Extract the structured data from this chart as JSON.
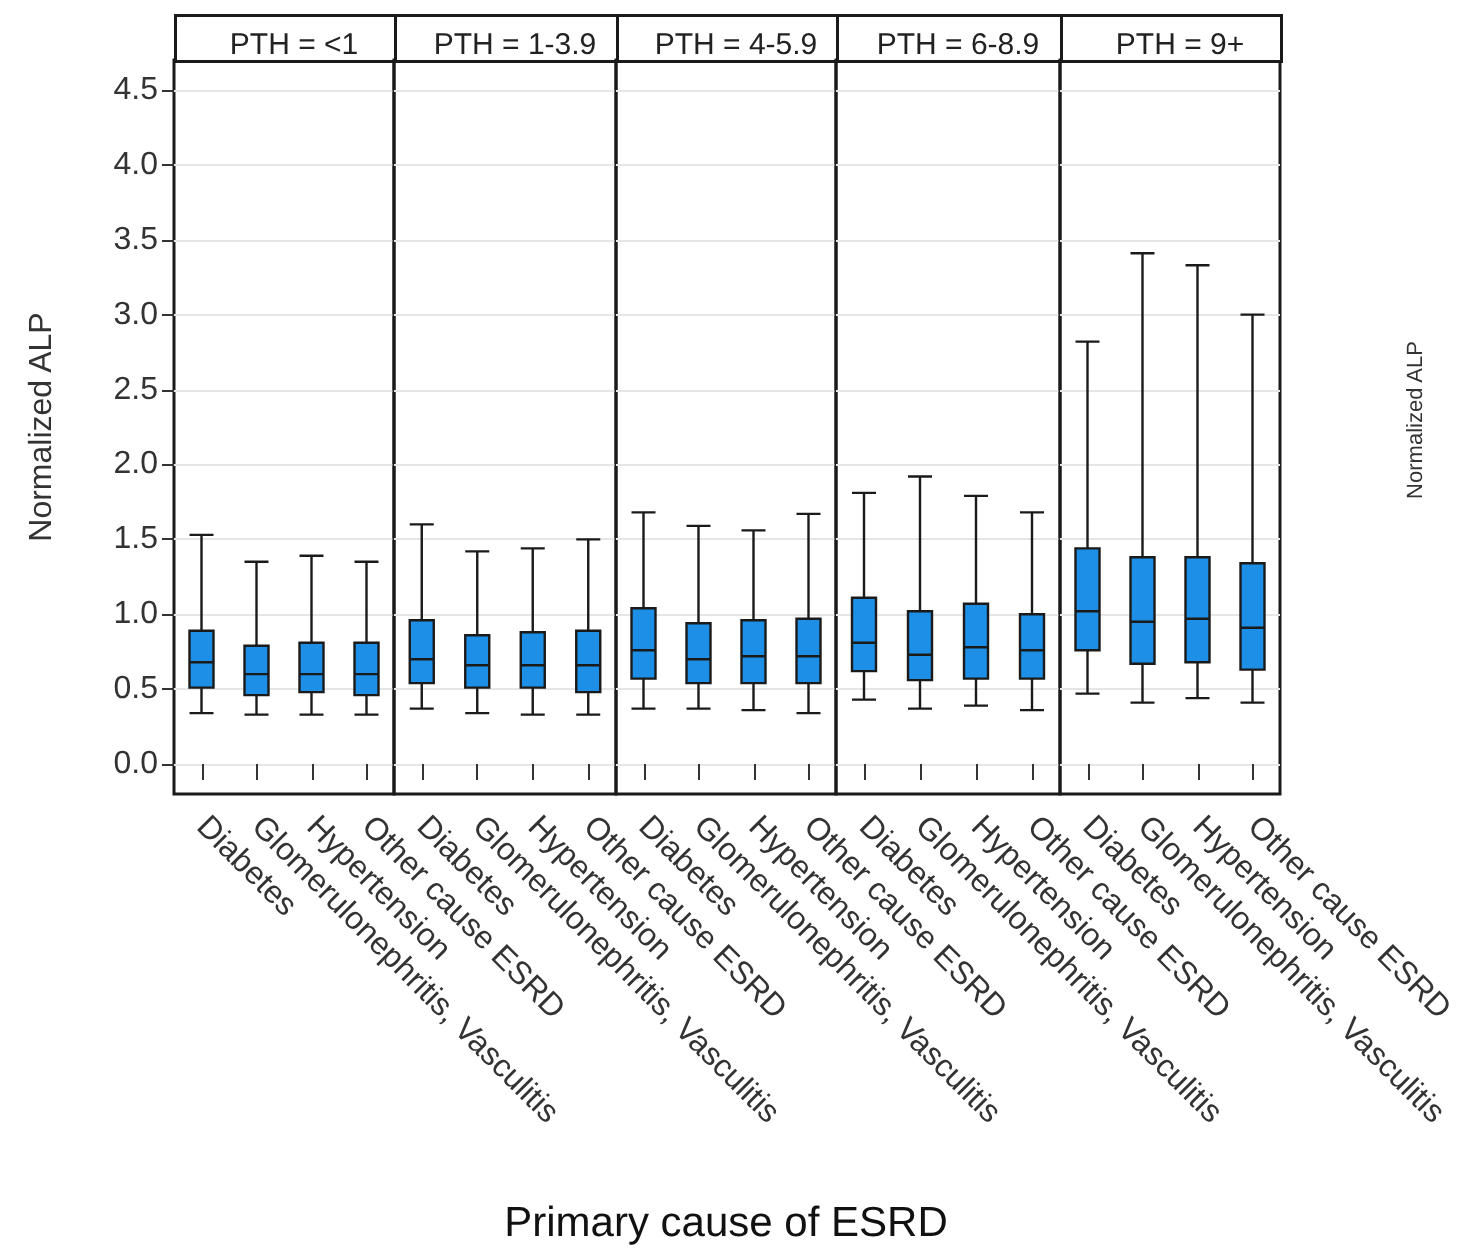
{
  "chart_data": [
    {
      "type": "box",
      "title": "PTH = <1",
      "ylabel": "Normalized ALP",
      "color": "#1e8fe6",
      "grid": "y",
      "categories": [
        "Diabetes",
        "Glomerulonephritis, Vasculitis",
        "Hypertension",
        "Other cause ESRD"
      ],
      "boxes": [
        {
          "low": 0.34,
          "q1": 0.51,
          "median": 0.68,
          "q3": 0.89,
          "high": 1.53
        },
        {
          "low": 0.33,
          "q1": 0.46,
          "median": 0.6,
          "q3": 0.79,
          "high": 1.35
        },
        {
          "low": 0.33,
          "q1": 0.48,
          "median": 0.6,
          "q3": 0.81,
          "high": 1.39
        },
        {
          "low": 0.33,
          "q1": 0.46,
          "median": 0.6,
          "q3": 0.81,
          "high": 1.35
        }
      ],
      "ylim": [
        -0.2,
        4.7
      ],
      "yticks": [
        {
          "value": 0,
          "label": "0.0"
        },
        0.5,
        {
          "value": 1,
          "label": "1.0"
        },
        1.5,
        {
          "value": 2,
          "label": "2.0"
        },
        2.5,
        {
          "value": 3,
          "label": "3.0"
        },
        3.5,
        {
          "value": 4,
          "label": "4.0"
        },
        4.5
      ]
    },
    {
      "type": "box",
      "title": "PTH = 1-3.9",
      "color": "#1e8fe6",
      "grid": "y",
      "tick_labels": "x",
      "categories": [
        "Diabetes",
        "Glomerulonephritis, Vasculitis",
        "Hypertension",
        "Other cause ESRD"
      ],
      "boxes": [
        {
          "low": 0.37,
          "q1": 0.54,
          "median": 0.7,
          "q3": 0.96,
          "high": 1.6
        },
        {
          "low": 0.34,
          "q1": 0.51,
          "median": 0.66,
          "q3": 0.86,
          "high": 1.42
        },
        {
          "low": 0.33,
          "q1": 0.51,
          "median": 0.66,
          "q3": 0.88,
          "high": 1.44
        },
        {
          "low": 0.33,
          "q1": 0.48,
          "median": 0.66,
          "q3": 0.89,
          "high": 1.5
        }
      ],
      "ylim": [
        -0.2,
        4.7
      ],
      "yticks": [
        0,
        0.5,
        1,
        1.5,
        2,
        2.5,
        3,
        3.5,
        4,
        4.5
      ]
    },
    {
      "type": "box",
      "title": "PTH = 4-5.9",
      "xlabel": "Primary cause of ESRD",
      "color": "#1e8fe6",
      "grid": "y",
      "tick_labels": "x",
      "categories": [
        "Diabetes",
        "Glomerulonephritis, Vasculitis",
        "Hypertension",
        "Other cause ESRD"
      ],
      "boxes": [
        {
          "low": 0.37,
          "q1": 0.57,
          "median": 0.76,
          "q3": 1.04,
          "high": 1.68
        },
        {
          "low": 0.37,
          "q1": 0.54,
          "median": 0.7,
          "q3": 0.94,
          "high": 1.59
        },
        {
          "low": 0.36,
          "q1": 0.54,
          "median": 0.72,
          "q3": 0.96,
          "high": 1.56
        },
        {
          "low": 0.34,
          "q1": 0.54,
          "median": 0.72,
          "q3": 0.97,
          "high": 1.67
        }
      ],
      "ylim": [
        -0.2,
        4.7
      ],
      "yticks": [
        0,
        0.5,
        1,
        1.5,
        2,
        2.5,
        3,
        3.5,
        4,
        4.5
      ]
    },
    {
      "type": "box",
      "title": "PTH = 6-8.9",
      "color": "#1e8fe6",
      "grid": "y",
      "tick_labels": "x",
      "categories": [
        "Diabetes",
        "Glomerulonephritis, Vasculitis",
        "Hypertension",
        "Other cause ESRD"
      ],
      "boxes": [
        {
          "low": 0.43,
          "q1": 0.62,
          "median": 0.81,
          "q3": 1.11,
          "high": 1.81
        },
        {
          "low": 0.37,
          "q1": 0.56,
          "median": 0.73,
          "q3": 1.02,
          "high": 1.92
        },
        {
          "low": 0.39,
          "q1": 0.57,
          "median": 0.78,
          "q3": 1.07,
          "high": 1.79
        },
        {
          "low": 0.36,
          "q1": 0.57,
          "median": 0.76,
          "q3": 1.0,
          "high": 1.68
        }
      ],
      "ylim": [
        -0.2,
        4.7
      ],
      "yticks": [
        0,
        0.5,
        1,
        1.5,
        2,
        2.5,
        3,
        3.5,
        4,
        4.5
      ]
    },
    {
      "type": "box",
      "title": "PTH = 9+",
      "color": "#1e8fe6",
      "grid": "y",
      "tick_labels": "x",
      "annotations": [
        "Normalized ALP"
      ],
      "categories": [
        "Diabetes",
        "Glomerulonephritis, Vasculitis",
        "Hypertension",
        "Other cause ESRD"
      ],
      "boxes": [
        {
          "low": 0.47,
          "q1": 0.76,
          "median": 1.02,
          "q3": 1.44,
          "high": 2.82
        },
        {
          "low": 0.41,
          "q1": 0.67,
          "median": 0.95,
          "q3": 1.38,
          "high": 3.41
        },
        {
          "low": 0.44,
          "q1": 0.68,
          "median": 0.97,
          "q3": 1.38,
          "high": 3.33
        },
        {
          "low": 0.41,
          "q1": 0.63,
          "median": 0.91,
          "q3": 1.34,
          "high": 3.0
        }
      ],
      "ylim": [
        -0.2,
        4.7
      ],
      "yticks": [
        0,
        0.5,
        1,
        1.5,
        2,
        2.5,
        3,
        3.5,
        4,
        4.5
      ]
    }
  ]
}
